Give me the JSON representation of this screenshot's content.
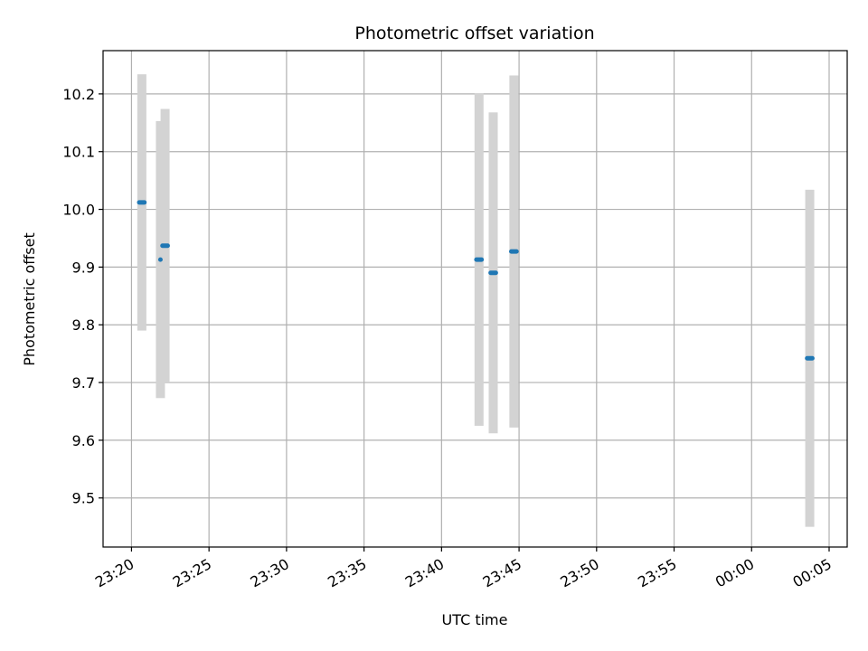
{
  "chart_data": {
    "type": "scatter",
    "title": "Photometric offset variation",
    "xlabel": "UTC time",
    "ylabel": "Photometric offset",
    "x_axis_type": "time",
    "xlim": [
      "23:18:10",
      "00:06:10"
    ],
    "ylim": [
      9.415,
      10.275
    ],
    "x_ticks": [
      "23:20",
      "23:25",
      "23:30",
      "23:35",
      "23:40",
      "23:45",
      "23:50",
      "23:55",
      "00:00",
      "00:05"
    ],
    "y_ticks": [
      9.5,
      9.6,
      9.7,
      9.8,
      9.9,
      10.0,
      10.1,
      10.2
    ],
    "grid": true,
    "colors": {
      "points": "#1f77b4",
      "error_bars": "#d3d3d3",
      "grid": "#b0b0b0"
    },
    "series": [
      {
        "points": [
          {
            "x": "23:20:30",
            "x_end": "23:20:50",
            "y": 10.012,
            "err": 0.222
          },
          {
            "x": "23:21:52",
            "x_end": "23:21:52",
            "y": 9.913,
            "err": 0.24
          },
          {
            "x": "23:22:00",
            "x_end": "23:22:20",
            "y": 9.937,
            "err": 0.237
          },
          {
            "x": "23:42:15",
            "x_end": "23:42:35",
            "y": 9.913,
            "err": 0.288
          },
          {
            "x": "23:43:10",
            "x_end": "23:43:30",
            "y": 9.89,
            "err": 0.278
          },
          {
            "x": "23:44:30",
            "x_end": "23:44:50",
            "y": 9.927,
            "err": 0.305
          },
          {
            "x": "00:03:35",
            "x_end": "00:03:55",
            "y": 9.742,
            "err": 0.292
          }
        ]
      }
    ]
  }
}
